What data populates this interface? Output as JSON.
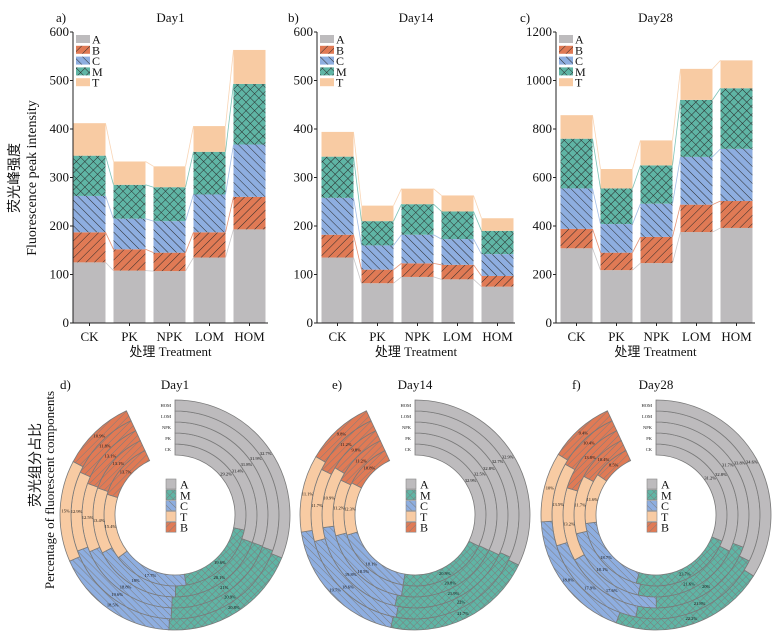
{
  "colors": {
    "A": "#bdbbbd",
    "B": "#e07a55",
    "C": "#8eaee0",
    "M": "#5fb5a5",
    "T": "#f8cba3"
  },
  "chart_data": [
    {
      "type": "bar",
      "stacked": true,
      "panel": "a)",
      "title": "Day1",
      "categories": [
        "CK",
        "PK",
        "NPK",
        "LOM",
        "HOM"
      ],
      "series": [
        {
          "name": "A",
          "values": [
            125,
            108,
            107,
            135,
            193
          ]
        },
        {
          "name": "B",
          "values": [
            62,
            44,
            38,
            52,
            67
          ]
        },
        {
          "name": "C",
          "values": [
            75,
            63,
            65,
            78,
            108
          ]
        },
        {
          "name": "M",
          "values": [
            83,
            70,
            70,
            88,
            125
          ]
        },
        {
          "name": "T",
          "values": [
            67,
            48,
            43,
            53,
            70
          ]
        }
      ],
      "ylim": [
        0,
        600
      ],
      "yticks": [
        0,
        100,
        200,
        300,
        400,
        500,
        600
      ],
      "xlabel": "处理 Treatment",
      "ylabel_cn": "荧光峰强度",
      "ylabel": "Fluorescence peak intensity",
      "legend": "top-left"
    },
    {
      "type": "bar",
      "stacked": true,
      "panel": "b)",
      "title": "Day14",
      "categories": [
        "CK",
        "PK",
        "NPK",
        "LOM",
        "HOM"
      ],
      "series": [
        {
          "name": "A",
          "values": [
            135,
            82,
            95,
            90,
            75
          ]
        },
        {
          "name": "B",
          "values": [
            47,
            28,
            28,
            30,
            22
          ]
        },
        {
          "name": "C",
          "values": [
            76,
            50,
            59,
            53,
            45
          ]
        },
        {
          "name": "M",
          "values": [
            85,
            50,
            63,
            57,
            48
          ]
        },
        {
          "name": "T",
          "values": [
            51,
            32,
            32,
            33,
            26
          ]
        }
      ],
      "ylim": [
        0,
        600
      ],
      "yticks": [
        0,
        100,
        200,
        300,
        400,
        500,
        600
      ],
      "xlabel": "处理 Treatment",
      "legend": "top-left"
    },
    {
      "type": "bar",
      "stacked": true,
      "panel": "c)",
      "title": "Day28",
      "categories": [
        "CK",
        "PK",
        "NPK",
        "LOM",
        "HOM"
      ],
      "series": [
        {
          "name": "A",
          "values": [
            308,
            218,
            247,
            375,
            392
          ]
        },
        {
          "name": "B",
          "values": [
            80,
            72,
            108,
            113,
            111
          ]
        },
        {
          "name": "C",
          "values": [
            167,
            118,
            137,
            197,
            215
          ]
        },
        {
          "name": "M",
          "values": [
            205,
            147,
            158,
            235,
            250
          ]
        },
        {
          "name": "T",
          "values": [
            97,
            80,
            103,
            128,
            115
          ]
        }
      ],
      "ylim": [
        0,
        1200
      ],
      "yticks": [
        0,
        200,
        400,
        600,
        800,
        1000,
        1200
      ],
      "xlabel": "处理 Treatment",
      "legend": "top-left"
    },
    {
      "type": "pie",
      "variant": "radial stacked rings",
      "panel": "d)",
      "title": "Day1",
      "rings": [
        "CK",
        "PK",
        "NPK",
        "LOM",
        "HOM"
      ],
      "ylabel_cn": "荧光组分占比",
      "ylabel": "Percentage of fluorescent components",
      "legend": [
        "A",
        "M",
        "C",
        "T",
        "B"
      ],
      "series": [
        {
          "name": "A",
          "labels": [
            "29.2%",
            "31.4%",
            "31.8%",
            "31.9%",
            "32.7%"
          ],
          "values": [
            29.2,
            31.4,
            31.8,
            31.9,
            32.7
          ]
        },
        {
          "name": "M",
          "labels": [
            "19.6%",
            "20.1%",
            "21%",
            "20.9%",
            "20.8%"
          ],
          "values": [
            19.6,
            20.1,
            21.0,
            20.9,
            20.8
          ]
        },
        {
          "name": "C",
          "labels": [
            "17.7%",
            "18%",
            "18.8%",
            "19.6%",
            "18.5%"
          ],
          "values": [
            17.7,
            18.0,
            18.8,
            19.6,
            18.5
          ]
        },
        {
          "name": "T",
          "labels": [
            "15.4%",
            "13.4%",
            "12.5%",
            "12.9%",
            "15%"
          ],
          "values": [
            15.4,
            13.4,
            12.5,
            12.9,
            15.0
          ]
        },
        {
          "name": "B",
          "labels": [
            "13.7%",
            "13.1%",
            "13.1%",
            "11.8%",
            "10.9%"
          ],
          "values": [
            13.7,
            13.1,
            13.1,
            11.8,
            10.9
          ]
        }
      ]
    },
    {
      "type": "pie",
      "variant": "radial stacked rings",
      "panel": "e)",
      "title": "Day14",
      "rings": [
        "CK",
        "PK",
        "NPK",
        "LOM",
        "HOM"
      ],
      "legend": [
        "A",
        "M",
        "C",
        "T",
        "B"
      ],
      "series": [
        {
          "name": "A",
          "labels": [
            "32.9%",
            "32.5%",
            "32.8%",
            "32.7%",
            "32.9%"
          ],
          "values": [
            32.9,
            32.5,
            32.8,
            32.7,
            32.9
          ]
        },
        {
          "name": "M",
          "labels": [
            "20.9%",
            "20.8%",
            "21.9%",
            "22%",
            "21.7%"
          ],
          "values": [
            20.9,
            20.8,
            21.9,
            22.0,
            21.7
          ]
        },
        {
          "name": "C",
          "labels": [
            "18.1%",
            "18.5%",
            "19.8%",
            "18.6%",
            "19.7%"
          ],
          "values": [
            18.1,
            18.5,
            19.8,
            18.6,
            19.7
          ]
        },
        {
          "name": "T",
          "labels": [
            "12.3%",
            "11.2%",
            "10.9%",
            "11.7%",
            "11.1%"
          ],
          "values": [
            12.3,
            11.2,
            10.9,
            11.7,
            11.1
          ]
        },
        {
          "name": "B",
          "labels": [
            "10.8%",
            "11.2%",
            "9.8%",
            "11.2%",
            "9.8%"
          ],
          "values": [
            10.8,
            11.2,
            9.8,
            11.2,
            9.8
          ]
        }
      ]
    },
    {
      "type": "pie",
      "variant": "radial stacked rings",
      "panel": "f)",
      "title": "Day28",
      "rings": [
        "CK",
        "PK",
        "NPK",
        "LOM",
        "HOM"
      ],
      "legend": [
        "A",
        "M",
        "C",
        "T",
        "B"
      ],
      "series": [
        {
          "name": "A",
          "labels": [
            "31.2%",
            "32.8%",
            "31.7%",
            "33.8%",
            "34.6%"
          ],
          "values": [
            31.2,
            32.8,
            31.7,
            33.8,
            34.6
          ]
        },
        {
          "name": "M",
          "labels": [
            "23.7%",
            "21.6%",
            "20%",
            "21.8%",
            "22.2%"
          ],
          "values": [
            23.7,
            21.6,
            20.0,
            21.8,
            22.2
          ]
        },
        {
          "name": "C",
          "labels": [
            "18.7%",
            "18.1%",
            "17.6%",
            "17.9%",
            "18.8%"
          ],
          "values": [
            18.7,
            18.1,
            17.6,
            17.9,
            18.8
          ]
        },
        {
          "name": "T",
          "labels": [
            "11.6%",
            "11.7%",
            "13.2%",
            "13.5%",
            "10%"
          ],
          "values": [
            11.6,
            11.7,
            13.2,
            13.5,
            10.0
          ]
        },
        {
          "name": "B",
          "labels": [
            "8.5%",
            "10.4%",
            "13.8%",
            "10.4%",
            "9.4%"
          ],
          "values": [
            8.5,
            10.4,
            13.8,
            10.4,
            9.4
          ]
        }
      ]
    }
  ]
}
